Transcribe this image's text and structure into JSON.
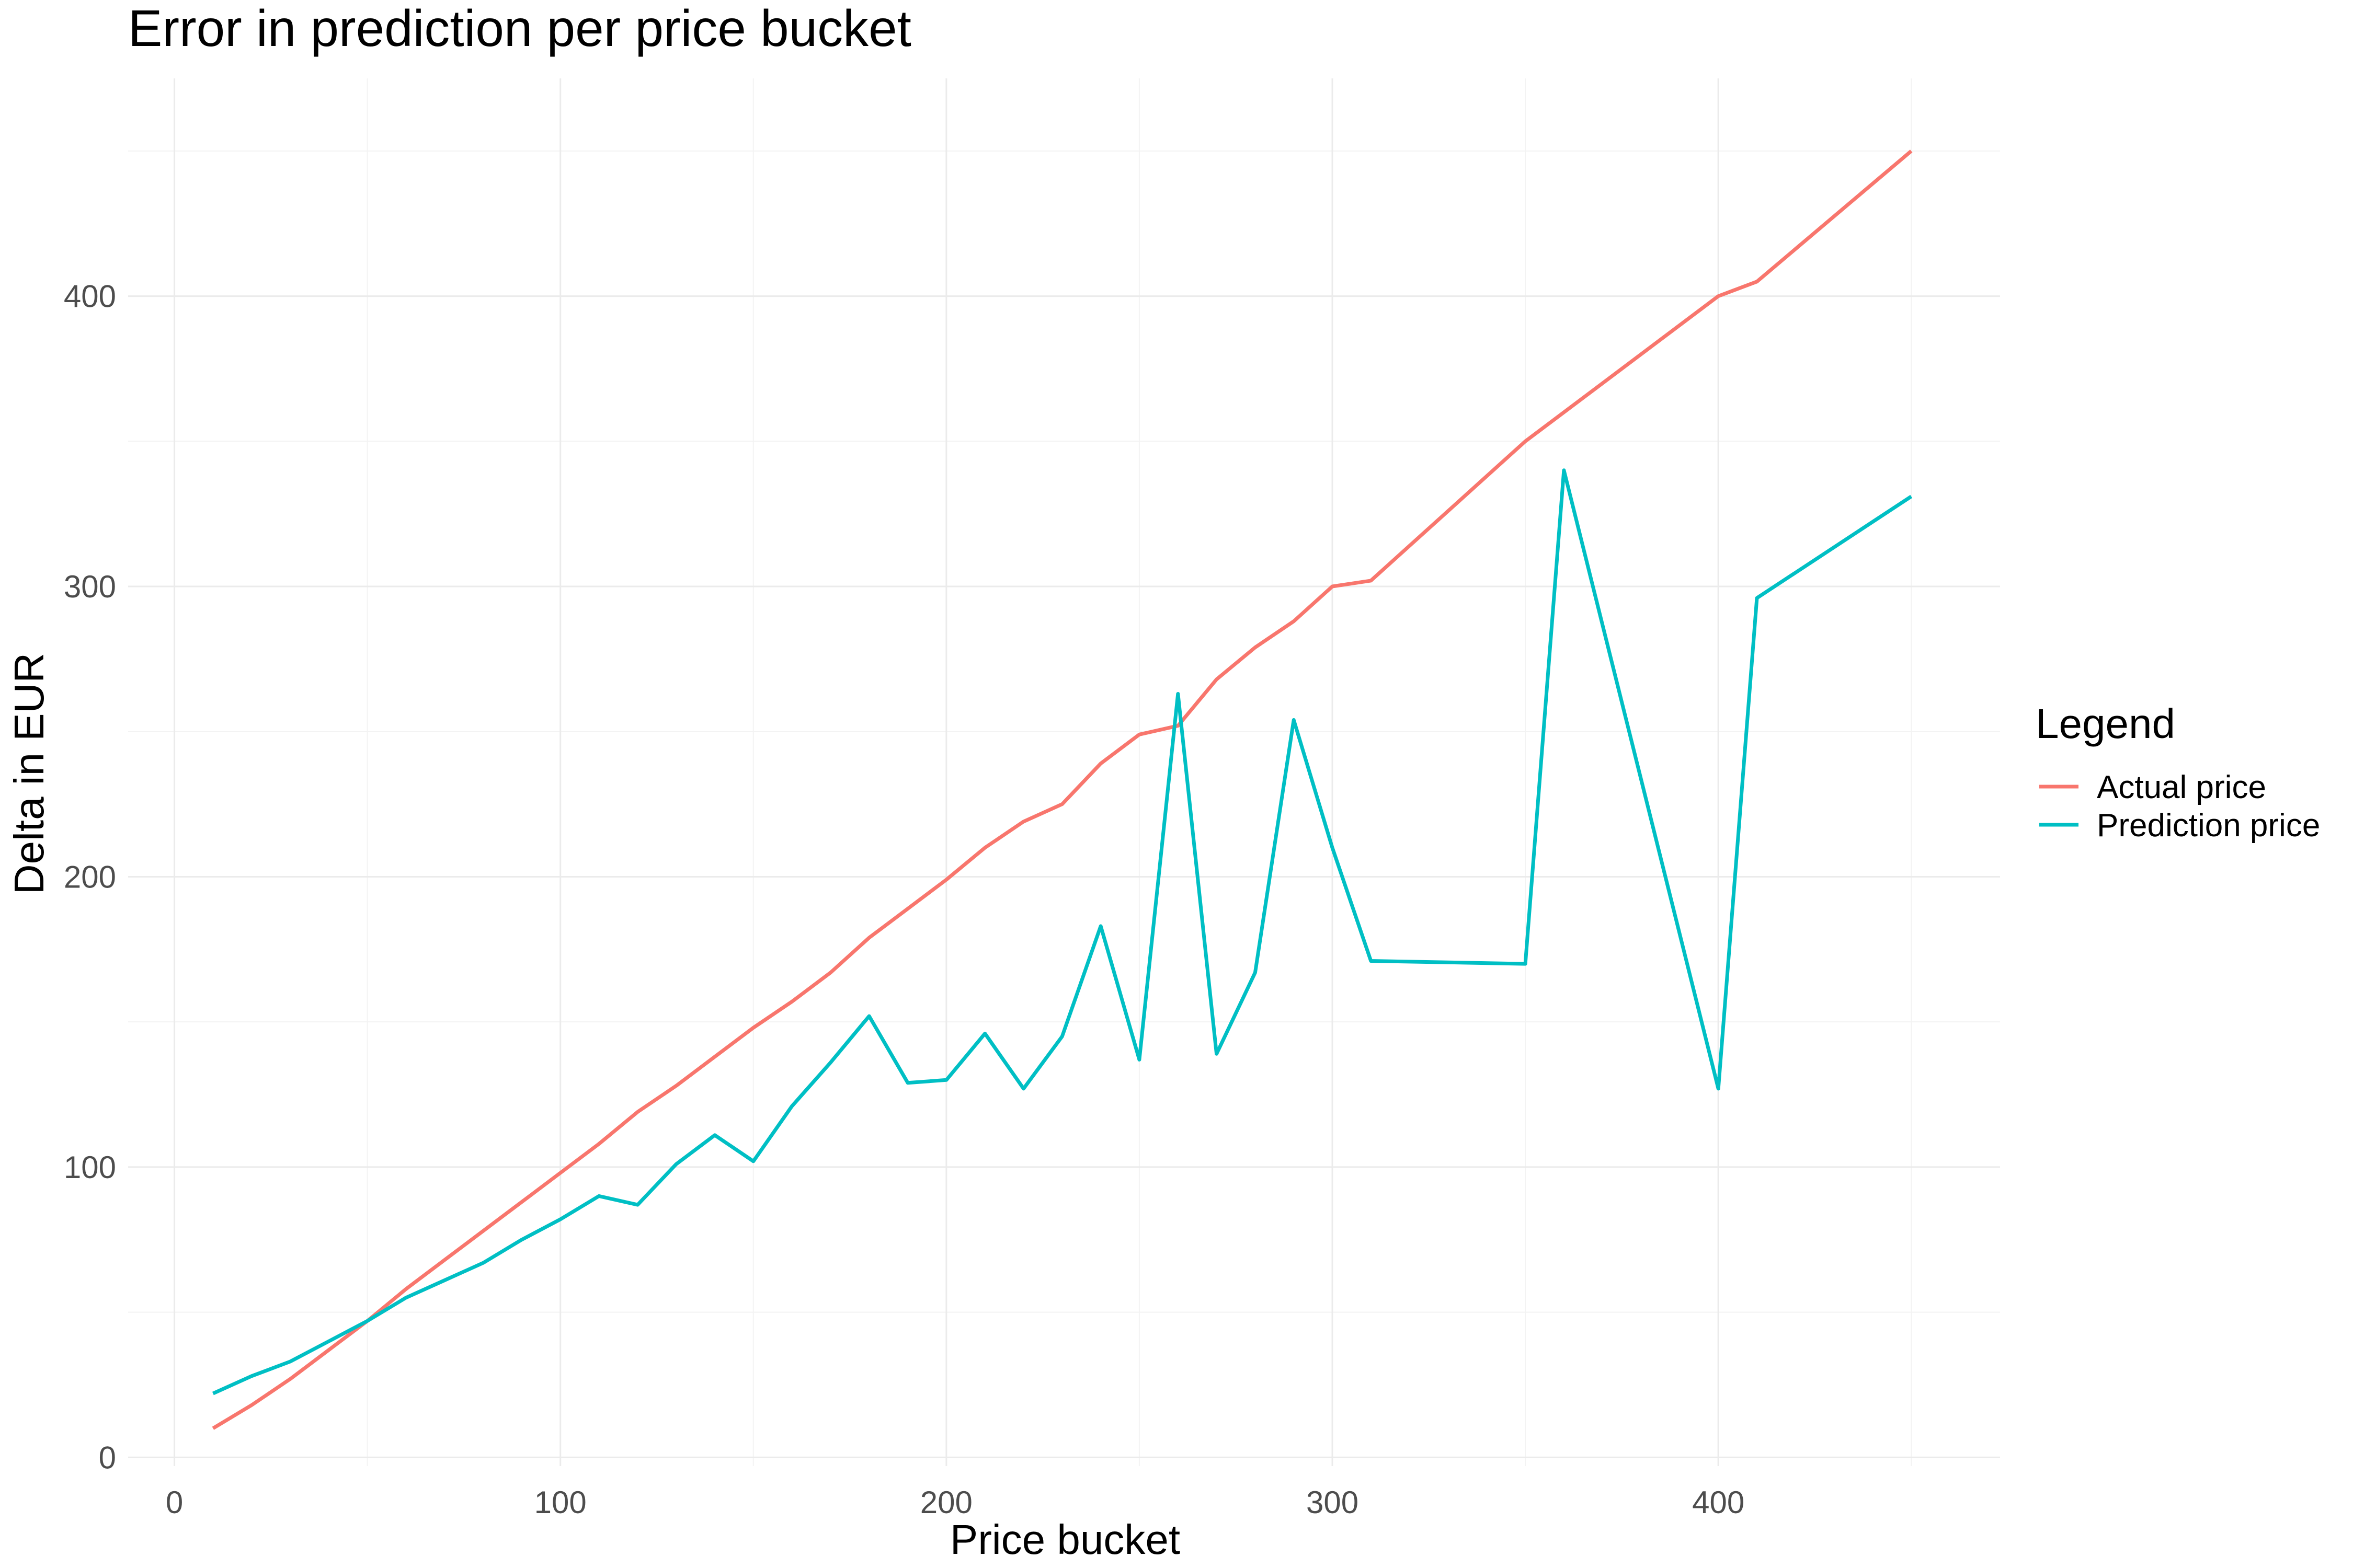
{
  "chart_data": {
    "type": "line",
    "title": "Error in prediction per price bucket",
    "xlabel": "Price bucket",
    "ylabel": "Delta in EUR",
    "xlim": [
      -12,
      473
    ],
    "ylim": [
      -3,
      475
    ],
    "x_ticks": [
      0,
      100,
      200,
      300,
      400
    ],
    "y_ticks": [
      0,
      100,
      200,
      300,
      400
    ],
    "grid": true,
    "legend": {
      "title": "Legend",
      "position": "right"
    },
    "series": [
      {
        "name": "Actual price",
        "color": "#F8766D",
        "x": [
          10,
          20,
          30,
          40,
          50,
          60,
          70,
          80,
          90,
          100,
          110,
          120,
          130,
          140,
          150,
          160,
          170,
          180,
          190,
          200,
          210,
          220,
          230,
          240,
          250,
          260,
          270,
          280,
          290,
          300,
          310,
          350,
          360,
          400,
          410,
          450
        ],
        "values": [
          10,
          18,
          27,
          37,
          47,
          58,
          68,
          78,
          88,
          98,
          108,
          119,
          128,
          138,
          148,
          157,
          167,
          179,
          189,
          199,
          210,
          219,
          225,
          239,
          249,
          252,
          268,
          279,
          288,
          300,
          302,
          350,
          360,
          400,
          405,
          450
        ]
      },
      {
        "name": "Prediction price",
        "color": "#00BFC4",
        "x": [
          10,
          20,
          30,
          40,
          50,
          60,
          70,
          80,
          90,
          100,
          110,
          120,
          130,
          140,
          150,
          160,
          170,
          180,
          190,
          200,
          210,
          220,
          230,
          240,
          250,
          260,
          270,
          280,
          290,
          300,
          310,
          350,
          360,
          400,
          410,
          450
        ],
        "values": [
          22,
          28,
          33,
          40,
          47,
          55,
          61,
          67,
          75,
          82,
          90,
          87,
          101,
          111,
          102,
          121,
          136,
          152,
          129,
          130,
          146,
          127,
          145,
          183,
          137,
          263,
          139,
          167,
          254,
          210,
          171,
          170,
          340,
          127,
          296,
          331
        ]
      }
    ]
  }
}
